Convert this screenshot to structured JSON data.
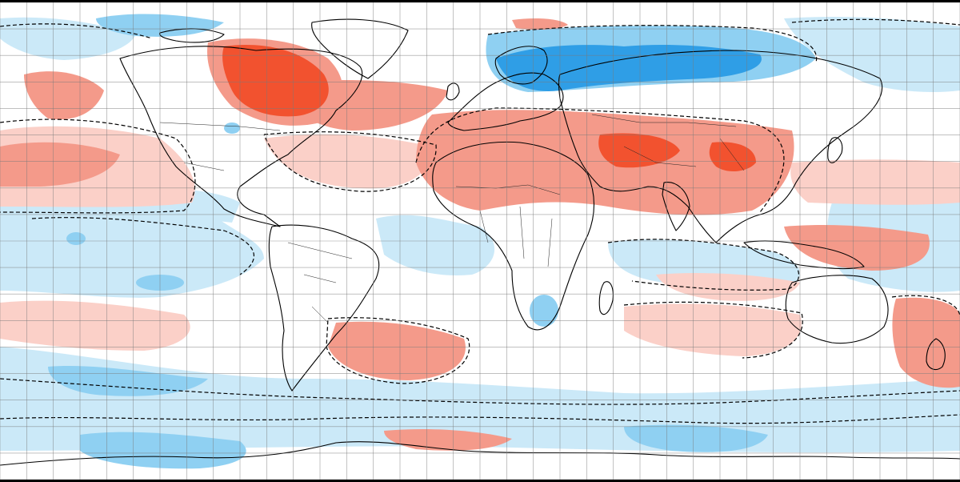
{
  "map": {
    "kind": "global-anomaly-map",
    "projection": "equirectangular",
    "graticule_step_deg": 10,
    "palette": {
      "strong_warm": "#f2522f",
      "moderate_warm": "#f49a8a",
      "weak_warm": "#fbd0c8",
      "neutral": "#ffffff",
      "weak_cool": "#cbe9f8",
      "moderate_cool": "#8fd0f2",
      "strong_cool": "#2f9ee6",
      "land_outline": "#000000",
      "background": "#000000"
    },
    "regions": [
      {
        "name": "northern-canada",
        "anomaly": "strong_warm"
      },
      {
        "name": "north-atlantic",
        "anomaly": "moderate_warm"
      },
      {
        "name": "north-pacific",
        "anomaly": "moderate_warm"
      },
      {
        "name": "sahara-middle-east",
        "anomaly": "moderate_warm"
      },
      {
        "name": "central-asia",
        "anomaly": "strong_warm"
      },
      {
        "name": "western-russia",
        "anomaly": "strong_cool"
      },
      {
        "name": "siberia",
        "anomaly": "moderate_cool"
      },
      {
        "name": "tropical-pacific",
        "anomaly": "weak_cool"
      },
      {
        "name": "south-atlantic",
        "anomaly": "moderate_warm"
      },
      {
        "name": "southern-ocean",
        "anomaly": "moderate_cool"
      },
      {
        "name": "new-zealand-sea",
        "anomaly": "moderate_warm"
      }
    ]
  }
}
